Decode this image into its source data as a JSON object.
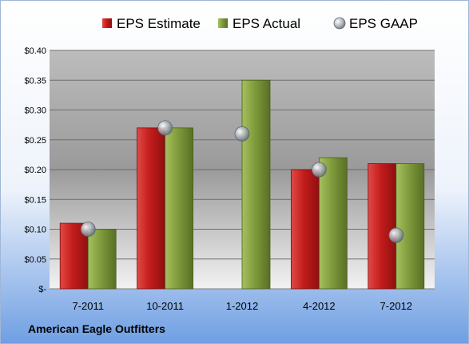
{
  "chart_data": {
    "type": "bar",
    "categories": [
      "7-2011",
      "10-2011",
      "1-2012",
      "4-2012",
      "7-2012"
    ],
    "series": [
      {
        "name": "EPS Estimate",
        "values": [
          0.11,
          0.27,
          null,
          0.2,
          0.21
        ],
        "color": "#c9201f"
      },
      {
        "name": "EPS Actual",
        "values": [
          0.1,
          0.27,
          0.35,
          0.22,
          0.21
        ],
        "color": "#7d9a3a"
      },
      {
        "name": "EPS GAAP",
        "values": [
          0.1,
          0.27,
          0.26,
          0.2,
          0.09
        ],
        "color": "#a8adb6",
        "marker": "circle"
      }
    ],
    "ylim": [
      0,
      0.4
    ],
    "yticks": [
      0,
      0.05,
      0.1,
      0.15,
      0.2,
      0.25,
      0.3,
      0.35,
      0.4
    ],
    "ytick_labels": [
      "$-",
      "$0.05",
      "$0.10",
      "$0.15",
      "$0.20",
      "$0.25",
      "$0.30",
      "$0.35",
      "$0.40"
    ],
    "grid": true,
    "legend_position": "top"
  },
  "footer": {
    "company": "American Eagle Outfitters"
  }
}
